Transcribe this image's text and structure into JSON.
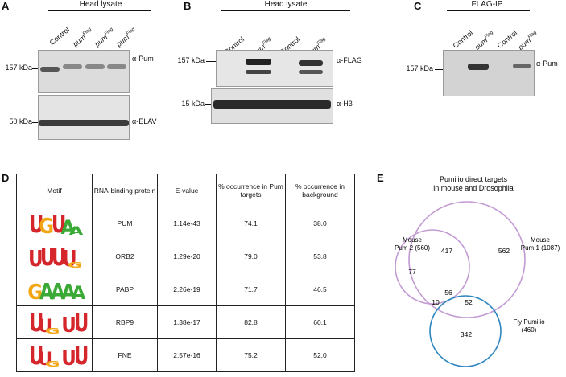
{
  "panels": {
    "a": {
      "label": "A",
      "header": "Head lysate",
      "lanes": [
        "Control",
        "pum",
        "pum",
        "pum"
      ],
      "lane_sup": [
        "",
        "Flag",
        "Flag",
        "Flag"
      ],
      "top_marker": "157 kDa",
      "top_antibody": "α-Pum",
      "bottom_marker": "50 kDa",
      "bottom_antibody": "α-ELAV"
    },
    "b": {
      "label": "B",
      "header": "Head lysate",
      "lanes": [
        "Control",
        "pum",
        "Control",
        "pum"
      ],
      "lane_sup": [
        "",
        "Flag",
        "",
        "Flag"
      ],
      "top_marker": "157 kDa",
      "top_antibody": "α-FLAG",
      "bottom_marker": "15 kDa",
      "bottom_antibody": "α-H3"
    },
    "c": {
      "label": "C",
      "header": "FLAG-IP",
      "lanes": [
        "Control",
        "pum",
        "Control",
        "pum"
      ],
      "lane_sup": [
        "",
        "Flag",
        "",
        "Flag"
      ],
      "marker": "157 kDa",
      "antibody": "α-Pum"
    },
    "d": {
      "label": "D",
      "columns": [
        "Motif",
        "RNA-binding protein",
        "E-value",
        "% occurrence in Pum targets",
        "% occurrence in background"
      ],
      "rows": [
        {
          "motif": [
            "U",
            "G",
            "U",
            "A",
            "A"
          ],
          "protein": "PUM",
          "evalue": "1.14e-43",
          "targets": "74.1",
          "background": "38.0"
        },
        {
          "motif": [
            "U",
            "U",
            "U",
            "U",
            "G"
          ],
          "protein": "ORB2",
          "evalue": "1.29e-20",
          "targets": "79.0",
          "background": "53.8"
        },
        {
          "motif": [
            "G",
            "A",
            "A",
            "A",
            "A"
          ],
          "protein": "PABP",
          "evalue": "2.26e-19",
          "targets": "71.7",
          "background": "46.5"
        },
        {
          "motif": [
            "U",
            "U",
            "G",
            "U",
            "U"
          ],
          "protein": "RBP9",
          "evalue": "1.38e-17",
          "targets": "82.8",
          "background": "60.1"
        },
        {
          "motif": [
            "U",
            "U",
            "G",
            "U",
            "U"
          ],
          "protein": "FNE",
          "evalue": "2.57e-16",
          "targets": "75.2",
          "background": "52.0"
        }
      ],
      "letter_colors": {
        "U": "#d4262b",
        "G": "#f2a613",
        "A": "#3aa935",
        "C": "#2a64b8"
      }
    },
    "e": {
      "label": "E",
      "title_line1": "Pumilio direct targets",
      "title_line2": "in mouse and Drosophila",
      "set_mouse_pum2": "Mouse Pum 2 (560)",
      "set_mouse_pum1": "Mouse Pum 1 (1087)",
      "set_fly": "Fly Pumilio (460)",
      "set_mouse_pum2_l1": "Mouse",
      "set_mouse_pum2_l2": "Pum 2 (560)",
      "set_mouse_pum1_l1": "Mouse",
      "set_mouse_pum1_l2": "Pum 1 (1087)",
      "set_fly_l1": "Fly Pumilio",
      "set_fly_l2": "(460)",
      "regions": {
        "pum2_only": "77",
        "pum1_pum2": "417",
        "pum1_only": "562",
        "all_three": "56",
        "pum2_fly": "10",
        "pum1_fly": "52",
        "fly_only": "342"
      },
      "colors": {
        "mouse": "#c39bd3",
        "fly": "#2e86c1"
      }
    }
  }
}
